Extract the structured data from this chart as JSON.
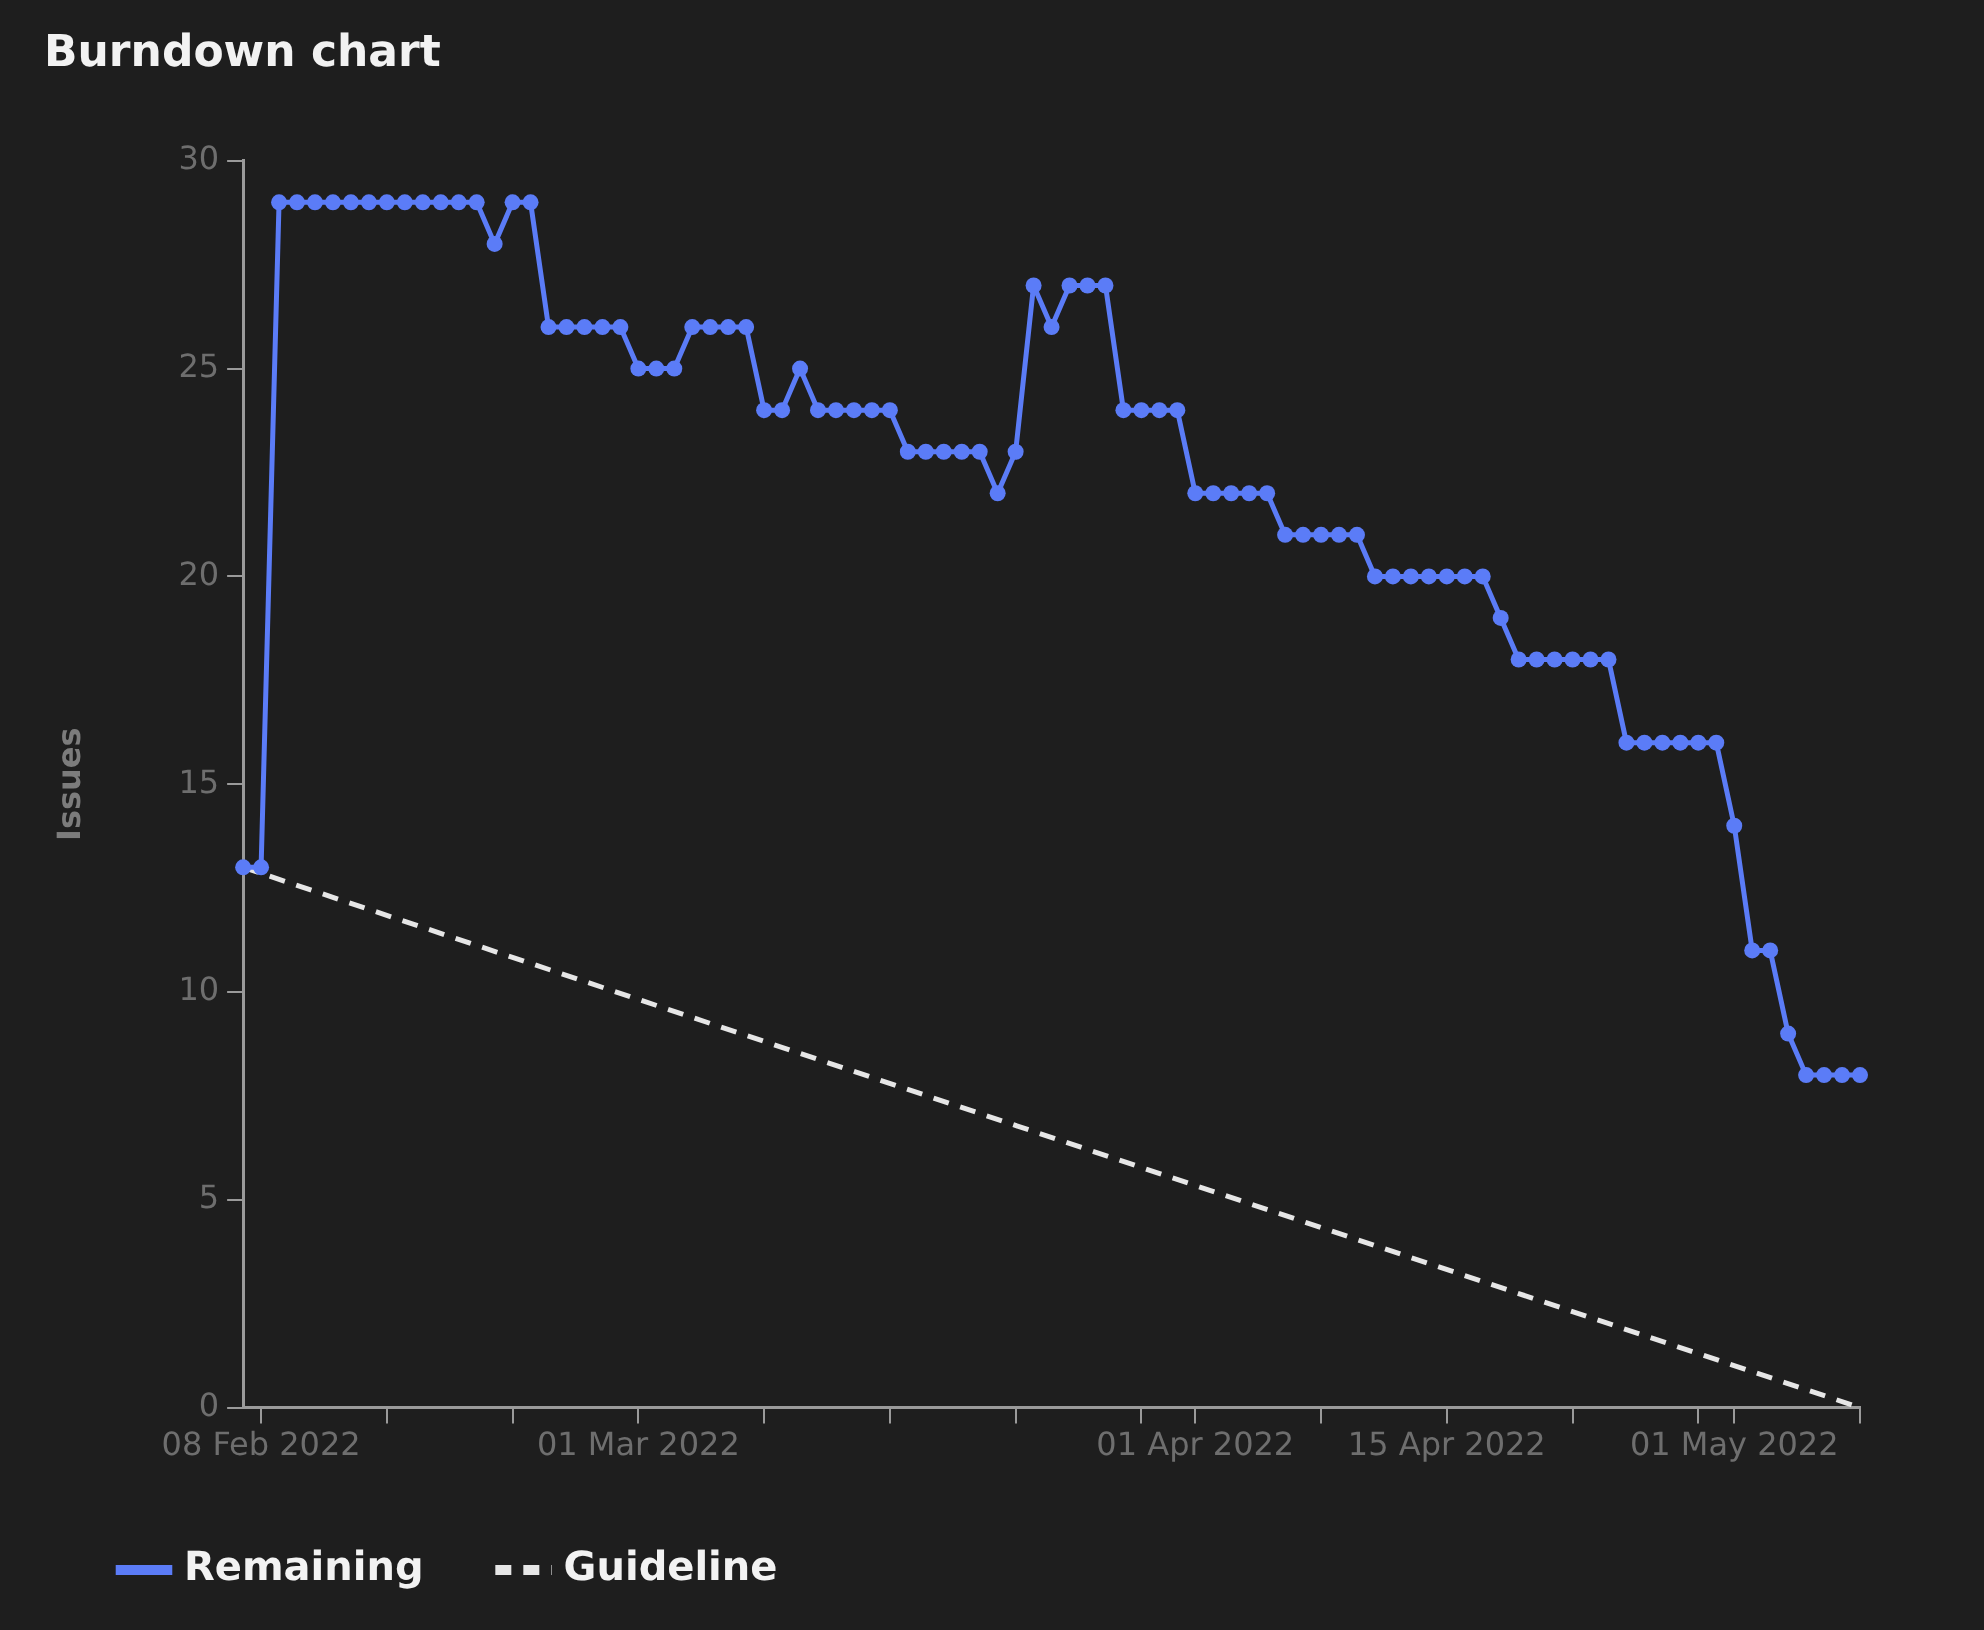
{
  "chart_data": {
    "type": "line",
    "title": "Burndown chart",
    "ylabel": "Issues",
    "series": [
      {
        "name": "Remaining",
        "color": "#5b7cf7",
        "marker": "circle",
        "line_style": "solid",
        "x": [
          "2022-02-07",
          "2022-02-08",
          "2022-02-09",
          "2022-02-10",
          "2022-02-11",
          "2022-02-12",
          "2022-02-13",
          "2022-02-14",
          "2022-02-15",
          "2022-02-16",
          "2022-02-17",
          "2022-02-18",
          "2022-02-19",
          "2022-02-20",
          "2022-02-21",
          "2022-02-22",
          "2022-02-23",
          "2022-02-24",
          "2022-02-25",
          "2022-02-26",
          "2022-02-27",
          "2022-02-28",
          "2022-03-01",
          "2022-03-02",
          "2022-03-03",
          "2022-03-04",
          "2022-03-05",
          "2022-03-06",
          "2022-03-07",
          "2022-03-08",
          "2022-03-09",
          "2022-03-10",
          "2022-03-11",
          "2022-03-12",
          "2022-03-13",
          "2022-03-14",
          "2022-03-15",
          "2022-03-16",
          "2022-03-17",
          "2022-03-18",
          "2022-03-19",
          "2022-03-20",
          "2022-03-21",
          "2022-03-22",
          "2022-03-23",
          "2022-03-24",
          "2022-03-25",
          "2022-03-26",
          "2022-03-27",
          "2022-03-28",
          "2022-03-29",
          "2022-03-30",
          "2022-03-31",
          "2022-04-01",
          "2022-04-02",
          "2022-04-03",
          "2022-04-04",
          "2022-04-05",
          "2022-04-06",
          "2022-04-07",
          "2022-04-08",
          "2022-04-09",
          "2022-04-10",
          "2022-04-11",
          "2022-04-12",
          "2022-04-13",
          "2022-04-14",
          "2022-04-15",
          "2022-04-16",
          "2022-04-17",
          "2022-04-18",
          "2022-04-19",
          "2022-04-20",
          "2022-04-21",
          "2022-04-22",
          "2022-04-23",
          "2022-04-24",
          "2022-04-25",
          "2022-04-26",
          "2022-04-27",
          "2022-04-28",
          "2022-04-29",
          "2022-04-30",
          "2022-05-01",
          "2022-05-02",
          "2022-05-03",
          "2022-05-04",
          "2022-05-05",
          "2022-05-06",
          "2022-05-07",
          "2022-05-08"
        ],
        "values": [
          13,
          13,
          29,
          29,
          29,
          29,
          29,
          29,
          29,
          29,
          29,
          29,
          29,
          29,
          28,
          29,
          29,
          26,
          26,
          26,
          26,
          26,
          25,
          25,
          25,
          26,
          26,
          26,
          26,
          24,
          24,
          25,
          24,
          24,
          24,
          24,
          24,
          23,
          23,
          23,
          23,
          23,
          22,
          23,
          27,
          26,
          27,
          27,
          27,
          24,
          24,
          24,
          24,
          22,
          22,
          22,
          22,
          22,
          21,
          21,
          21,
          21,
          21,
          20,
          20,
          20,
          20,
          20,
          20,
          20,
          19,
          18,
          18,
          18,
          18,
          18,
          18,
          16,
          16,
          16,
          16,
          16,
          16,
          14,
          11,
          11,
          9,
          8,
          8,
          8,
          8
        ]
      },
      {
        "name": "Guideline",
        "color": "#e6e6e6",
        "marker": "none",
        "line_style": "dashed",
        "x": [
          "2022-02-07",
          "2022-05-08"
        ],
        "values": [
          13,
          0
        ]
      }
    ],
    "xlim": [
      "2022-02-07",
      "2022-05-08"
    ],
    "xticks": [
      {
        "value": "2022-02-08",
        "label": "08 Feb 2022"
      },
      {
        "value": "2022-02-15",
        "label": null
      },
      {
        "value": "2022-02-22",
        "label": null
      },
      {
        "value": "2022-03-01",
        "label": "01 Mar 2022"
      },
      {
        "value": "2022-03-08",
        "label": null
      },
      {
        "value": "2022-03-15",
        "label": null
      },
      {
        "value": "2022-03-22",
        "label": null
      },
      {
        "value": "2022-03-29",
        "label": null
      },
      {
        "value": "2022-04-01",
        "label": "01 Apr 2022"
      },
      {
        "value": "2022-04-08",
        "label": null
      },
      {
        "value": "2022-04-15",
        "label": "15 Apr 2022"
      },
      {
        "value": "2022-04-22",
        "label": null
      },
      {
        "value": "2022-04-29",
        "label": null
      },
      {
        "value": "2022-05-01",
        "label": "01 May 2022"
      },
      {
        "value": "2022-05-08",
        "label": null
      }
    ],
    "ylim": [
      0,
      30
    ],
    "yticks": [
      0,
      5,
      10,
      15,
      20,
      25,
      30
    ],
    "legend": "bottom"
  }
}
